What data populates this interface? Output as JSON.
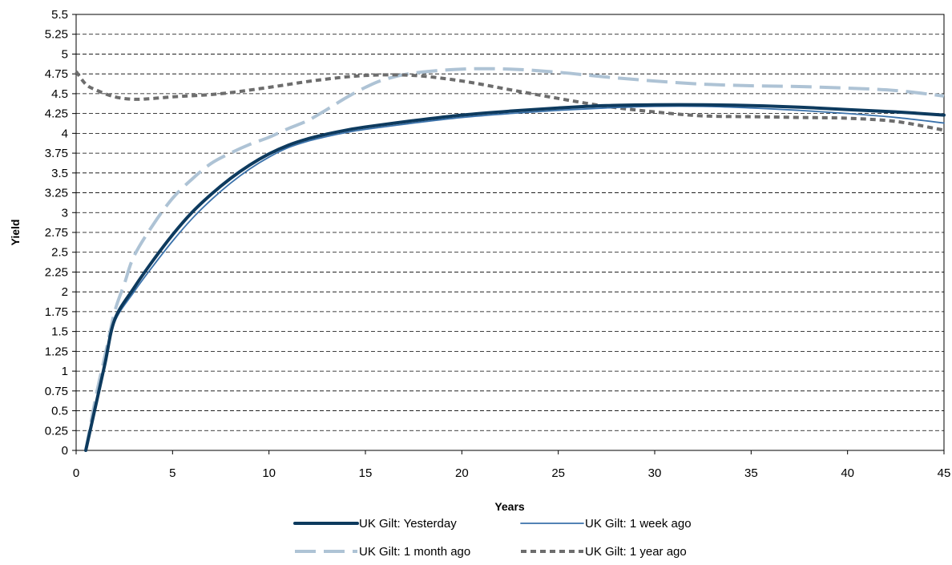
{
  "chart_data": {
    "type": "line",
    "title": "",
    "xlabel": "Years",
    "ylabel": "Yield",
    "xlim": [
      0,
      45
    ],
    "ylim": [
      0,
      5.5
    ],
    "x_ticks": [
      0,
      5,
      10,
      15,
      20,
      25,
      30,
      35,
      40,
      45
    ],
    "x_tick_labels": [
      "0",
      "5",
      "10",
      "15",
      "20",
      "25",
      "30",
      "35",
      "40",
      "45"
    ],
    "y_ticks": [
      0,
      0.25,
      0.5,
      0.75,
      1,
      1.25,
      1.5,
      1.75,
      2,
      2.25,
      2.5,
      2.75,
      3,
      3.25,
      3.5,
      3.75,
      4,
      4.25,
      4.5,
      4.75,
      5,
      5.25,
      5.5
    ],
    "y_tick_labels": [
      "0",
      "0.25",
      "0.5",
      "0.75",
      "1",
      "1.25",
      "1.5",
      "1.75",
      "2",
      "2.25",
      "2.5",
      "2.75",
      "3",
      "3.25",
      "3.5",
      "3.75",
      "4",
      "4.25",
      "4.5",
      "4.75",
      "5",
      "5.25",
      "5.5"
    ],
    "grid": "horizontal dashed",
    "legend_position": "bottom",
    "series": [
      {
        "name": "UK Gilt: Yesterday",
        "color": "#0d3a5e",
        "style": "solid-thick",
        "x": [
          0.5,
          1,
          1.5,
          2,
          3,
          4,
          5,
          6,
          7,
          8,
          9,
          10,
          11,
          12,
          13,
          14,
          15,
          17.5,
          20,
          22.5,
          25,
          27.5,
          30,
          32.5,
          35,
          37.5,
          40,
          42.5,
          45
        ],
        "y": [
          0,
          0.55,
          1.1,
          1.65,
          2.05,
          2.4,
          2.72,
          3.0,
          3.23,
          3.43,
          3.6,
          3.74,
          3.85,
          3.93,
          3.99,
          4.04,
          4.08,
          4.16,
          4.23,
          4.28,
          4.32,
          4.35,
          4.36,
          4.36,
          4.35,
          4.33,
          4.3,
          4.27,
          4.23
        ]
      },
      {
        "name": "UK Gilt: 1 week ago",
        "color": "#3b72ab",
        "style": "solid-thin",
        "x": [
          0.5,
          1,
          1.5,
          2,
          3,
          4,
          5,
          6,
          7,
          8,
          9,
          10,
          11,
          12,
          13,
          14,
          15,
          17.5,
          20,
          22.5,
          25,
          27.5,
          30,
          32.5,
          35,
          37.5,
          40,
          42.5,
          45
        ],
        "y": [
          0,
          0.55,
          1.1,
          1.62,
          2.0,
          2.33,
          2.64,
          2.92,
          3.16,
          3.37,
          3.55,
          3.7,
          3.82,
          3.9,
          3.96,
          4.01,
          4.05,
          4.13,
          4.2,
          4.25,
          4.29,
          4.32,
          4.34,
          4.34,
          4.32,
          4.29,
          4.25,
          4.2,
          4.13
        ]
      },
      {
        "name": "UK Gilt: 1 month ago",
        "color": "#aec3d5",
        "style": "long-dash",
        "x": [
          0.5,
          1,
          1.5,
          2,
          2.5,
          3,
          4,
          5,
          6,
          7,
          8,
          9,
          10,
          11,
          12,
          13,
          14,
          15,
          16,
          17.5,
          20,
          22.5,
          25,
          27.5,
          30,
          32.5,
          35,
          37.5,
          40,
          42.5,
          45
        ],
        "y": [
          0,
          0.65,
          1.2,
          1.75,
          2.1,
          2.45,
          2.85,
          3.18,
          3.42,
          3.62,
          3.75,
          3.86,
          3.95,
          4.06,
          4.16,
          4.3,
          4.45,
          4.58,
          4.68,
          4.76,
          4.81,
          4.81,
          4.77,
          4.71,
          4.66,
          4.62,
          4.6,
          4.59,
          4.57,
          4.54,
          4.47
        ]
      },
      {
        "name": "UK Gilt: 1 year ago",
        "color": "#6d6d6d",
        "style": "short-dash",
        "x": [
          0,
          0.5,
          1,
          2,
          3,
          4,
          5,
          7.5,
          10,
          12.5,
          15,
          17.5,
          20,
          22.5,
          25,
          27.5,
          30,
          32.5,
          35,
          37.5,
          40,
          42.5,
          45
        ],
        "y": [
          4.78,
          4.62,
          4.55,
          4.46,
          4.43,
          4.44,
          4.46,
          4.5,
          4.58,
          4.67,
          4.73,
          4.73,
          4.66,
          4.55,
          4.44,
          4.34,
          4.27,
          4.22,
          4.21,
          4.2,
          4.19,
          4.15,
          4.04
        ]
      }
    ]
  }
}
